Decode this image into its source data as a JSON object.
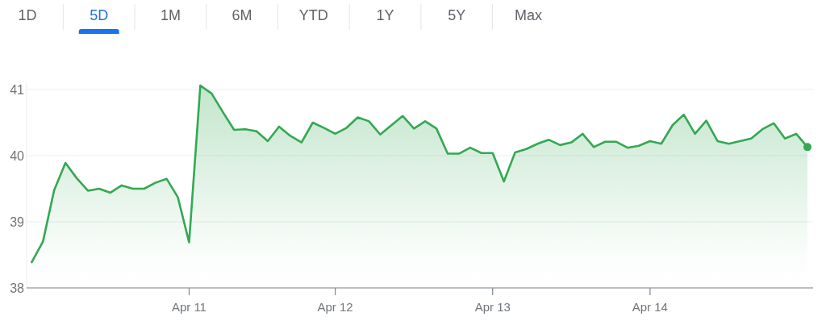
{
  "chart_data": {
    "type": "area",
    "color": "#34a853",
    "annotations": [
      "1D",
      "5D",
      "1M",
      "6M",
      "YTD",
      "1Y",
      "5Y",
      "Max"
    ],
    "categories": [
      null,
      null,
      null,
      null,
      null,
      null,
      null,
      null,
      null,
      null,
      null,
      null,
      null,
      null,
      "Apr 11",
      null,
      null,
      null,
      null,
      null,
      null,
      null,
      null,
      null,
      null,
      null,
      null,
      "Apr 12",
      null,
      null,
      null,
      null,
      null,
      null,
      null,
      null,
      null,
      null,
      null,
      null,
      null,
      "Apr 13",
      null,
      null,
      null,
      null,
      null,
      null,
      null,
      null,
      null,
      null,
      null,
      null,
      null,
      "Apr 14",
      null,
      null,
      null,
      null,
      null,
      null,
      null,
      null,
      null,
      null,
      null,
      null,
      null,
      null
    ],
    "values": [
      38.39,
      38.7,
      39.48,
      39.89,
      39.66,
      39.47,
      39.5,
      39.44,
      39.55,
      39.5,
      39.5,
      39.59,
      39.65,
      39.37,
      38.69,
      41.06,
      40.94,
      40.66,
      40.39,
      40.4,
      40.37,
      40.22,
      40.44,
      40.3,
      40.2,
      40.5,
      40.42,
      40.33,
      40.42,
      40.58,
      40.52,
      40.32,
      40.46,
      40.6,
      40.41,
      40.52,
      40.41,
      40.03,
      40.03,
      40.12,
      40.04,
      40.04,
      39.61,
      40.05,
      40.1,
      40.18,
      40.24,
      40.16,
      40.2,
      40.33,
      40.13,
      40.21,
      40.21,
      40.12,
      40.15,
      40.22,
      40.18,
      40.46,
      40.62,
      40.33,
      40.53,
      40.22,
      40.18,
      40.22,
      40.26,
      40.4,
      40.49,
      40.26,
      40.33,
      40.13
    ],
    "ylim": [
      38,
      41.1
    ],
    "yticks": [
      38,
      39,
      40,
      41
    ],
    "grid": "y"
  }
}
